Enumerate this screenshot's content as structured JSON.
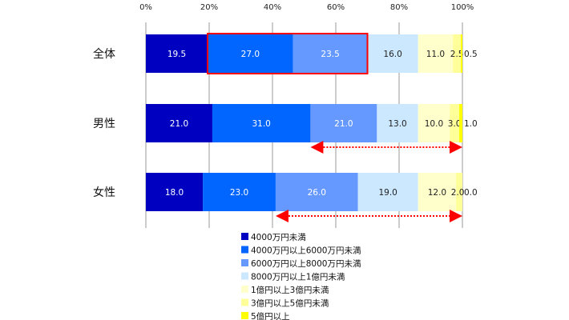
{
  "chart_data": {
    "type": "bar",
    "orientation": "horizontal",
    "stacked": true,
    "xlim": [
      0,
      100
    ],
    "x_ticks": [
      "0%",
      "20%",
      "40%",
      "60%",
      "80%",
      "100%"
    ],
    "grid": true,
    "legend_position": "bottom",
    "categories": [
      "全体",
      "男性",
      "女性"
    ],
    "series": [
      {
        "name": "4000万円未満",
        "color": "#0000C0",
        "values": [
          19.5,
          21.0,
          18.0
        ],
        "labels": [
          "19.5",
          "21.0",
          "18.0"
        ]
      },
      {
        "name": "4000万円以上6000万円未満",
        "color": "#0066FF",
        "values": [
          27.0,
          31.0,
          23.0
        ],
        "labels": [
          "27.0",
          "31.0",
          "23.0"
        ]
      },
      {
        "name": "6000万円以上8000万円未満",
        "color": "#6699FF",
        "values": [
          23.5,
          21.0,
          26.0
        ],
        "labels": [
          "23.5",
          "21.0",
          "26.0"
        ]
      },
      {
        "name": "8000万円以上1億円未満",
        "color": "#CCE8FF",
        "values": [
          16.0,
          13.0,
          19.0
        ],
        "labels": [
          "16.0",
          "13.0",
          "19.0"
        ]
      },
      {
        "name": "1億円以上3億円未満",
        "color": "#FFFFCC",
        "values": [
          11.0,
          10.0,
          12.0
        ],
        "labels": [
          "11.0",
          "10.0",
          "12.0"
        ]
      },
      {
        "name": "3億円以上5億円未満",
        "color": "#FFFF99",
        "values": [
          2.5,
          3.0,
          2.0
        ],
        "labels": [
          "2.5",
          "3.0",
          "2.0"
        ]
      },
      {
        "name": "5億円以上",
        "color": "#FFFF00",
        "values": [
          0.5,
          1.0,
          0.0
        ],
        "labels": [
          "0.5",
          "1.0",
          "0.0"
        ]
      }
    ],
    "annotations": {
      "highlight_box": {
        "category": "全体",
        "from": 19.5,
        "to": 70.0,
        "color": "#FF0000"
      },
      "arrows": [
        {
          "category": "男性",
          "from": 52.0,
          "to": 100.0,
          "color": "#FF0000"
        },
        {
          "category": "女性",
          "from": 41.0,
          "to": 100.0,
          "color": "#FF0000"
        }
      ]
    }
  }
}
